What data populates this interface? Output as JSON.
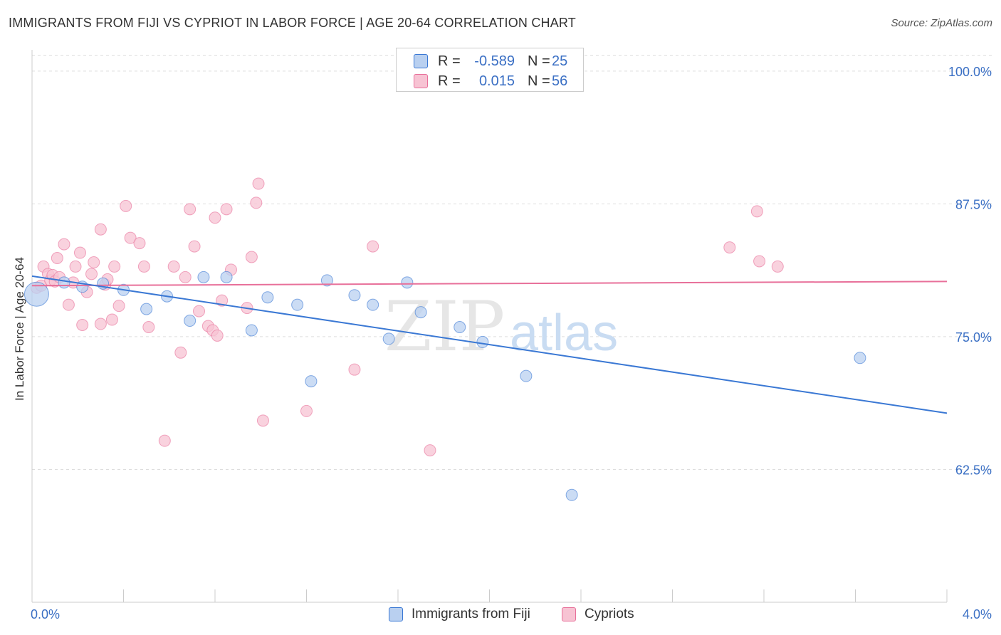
{
  "title": "IMMIGRANTS FROM FIJI VS CYPRIOT IN LABOR FORCE | AGE 20-64 CORRELATION CHART",
  "source": "Source: ZipAtlas.com",
  "colors": {
    "blue": "#3a78d4",
    "blue_fill": "#b9d0f0",
    "pink": "#e8709a",
    "pink_fill": "#f7c3d3",
    "axis_text": "#3a6fc4"
  },
  "watermark": {
    "zip": "ZIP",
    "atlas": "atlas"
  },
  "legend": {
    "rows": [
      {
        "r_label": "R =",
        "r_value": "-0.589",
        "n_label": "N =",
        "n_value": "25"
      },
      {
        "r_label": "R =",
        "r_value": "0.015",
        "n_label": "N =",
        "n_value": "56"
      }
    ]
  },
  "bottom_legend": {
    "fiji": "Immigrants from Fiji",
    "cypriots": "Cypriots"
  },
  "chart_data": {
    "type": "scatter",
    "title": "IMMIGRANTS FROM FIJI VS CYPRIOT IN LABOR FORCE | AGE 20-64 CORRELATION CHART",
    "xlabel": "",
    "ylabel": "In Labor Force | Age 20-64",
    "xlim": [
      0,
      4
    ],
    "ylim": [
      50,
      102
    ],
    "x_tick_labels": [
      "0.0%",
      "4.0%"
    ],
    "y_ticks": [
      62.5,
      75,
      87.5,
      100
    ],
    "y_tick_labels": [
      "62.5%",
      "75.0%",
      "87.5%",
      "100.0%"
    ],
    "grid": true,
    "series": [
      {
        "name": "Immigrants from Fiji",
        "r": -0.589,
        "n": 25,
        "trend": {
          "x": [
            0,
            4
          ],
          "y": [
            80.7,
            67.8
          ]
        },
        "points": [
          {
            "x": 0.02,
            "y": 79.0,
            "big": true
          },
          {
            "x": 0.14,
            "y": 80.1
          },
          {
            "x": 0.22,
            "y": 79.7
          },
          {
            "x": 0.31,
            "y": 80.0
          },
          {
            "x": 0.4,
            "y": 79.4
          },
          {
            "x": 0.5,
            "y": 77.6
          },
          {
            "x": 0.59,
            "y": 78.8
          },
          {
            "x": 0.69,
            "y": 76.5
          },
          {
            "x": 0.75,
            "y": 80.6
          },
          {
            "x": 0.85,
            "y": 80.6
          },
          {
            "x": 0.96,
            "y": 75.6
          },
          {
            "x": 1.03,
            "y": 78.7
          },
          {
            "x": 1.16,
            "y": 78.0
          },
          {
            "x": 1.22,
            "y": 70.8
          },
          {
            "x": 1.29,
            "y": 80.3
          },
          {
            "x": 1.41,
            "y": 78.9
          },
          {
            "x": 1.49,
            "y": 78.0
          },
          {
            "x": 1.56,
            "y": 74.8
          },
          {
            "x": 1.64,
            "y": 80.1
          },
          {
            "x": 1.7,
            "y": 77.3
          },
          {
            "x": 1.87,
            "y": 75.9
          },
          {
            "x": 1.97,
            "y": 74.5
          },
          {
            "x": 2.16,
            "y": 71.3
          },
          {
            "x": 2.36,
            "y": 60.1
          },
          {
            "x": 3.62,
            "y": 73.0
          }
        ]
      },
      {
        "name": "Cypriots",
        "r": 0.015,
        "n": 56,
        "trend": {
          "x": [
            0,
            4
          ],
          "y": [
            79.8,
            80.2
          ]
        },
        "points": [
          {
            "x": 0.02,
            "y": 79.6
          },
          {
            "x": 0.04,
            "y": 79.8
          },
          {
            "x": 0.05,
            "y": 81.6
          },
          {
            "x": 0.07,
            "y": 80.9
          },
          {
            "x": 0.08,
            "y": 80.3
          },
          {
            "x": 0.09,
            "y": 80.8
          },
          {
            "x": 0.1,
            "y": 80.2
          },
          {
            "x": 0.11,
            "y": 82.4
          },
          {
            "x": 0.12,
            "y": 80.6
          },
          {
            "x": 0.14,
            "y": 83.7
          },
          {
            "x": 0.16,
            "y": 78.0
          },
          {
            "x": 0.18,
            "y": 80.1
          },
          {
            "x": 0.19,
            "y": 81.6
          },
          {
            "x": 0.21,
            "y": 82.9
          },
          {
            "x": 0.22,
            "y": 76.1
          },
          {
            "x": 0.24,
            "y": 79.2
          },
          {
            "x": 0.26,
            "y": 80.9
          },
          {
            "x": 0.27,
            "y": 82.0
          },
          {
            "x": 0.3,
            "y": 76.2
          },
          {
            "x": 0.3,
            "y": 85.1
          },
          {
            "x": 0.32,
            "y": 79.9
          },
          {
            "x": 0.33,
            "y": 80.4
          },
          {
            "x": 0.35,
            "y": 76.6
          },
          {
            "x": 0.36,
            "y": 81.6
          },
          {
            "x": 0.38,
            "y": 77.9
          },
          {
            "x": 0.41,
            "y": 87.3
          },
          {
            "x": 0.43,
            "y": 84.3
          },
          {
            "x": 0.47,
            "y": 83.8
          },
          {
            "x": 0.49,
            "y": 81.6
          },
          {
            "x": 0.51,
            "y": 75.9
          },
          {
            "x": 0.62,
            "y": 81.6
          },
          {
            "x": 0.65,
            "y": 73.5
          },
          {
            "x": 0.67,
            "y": 80.6
          },
          {
            "x": 0.69,
            "y": 87.0
          },
          {
            "x": 0.71,
            "y": 83.5
          },
          {
            "x": 0.73,
            "y": 77.4
          },
          {
            "x": 0.77,
            "y": 76.0
          },
          {
            "x": 0.79,
            "y": 75.6
          },
          {
            "x": 0.8,
            "y": 86.2
          },
          {
            "x": 0.81,
            "y": 75.1
          },
          {
            "x": 0.83,
            "y": 78.4
          },
          {
            "x": 0.85,
            "y": 87.0
          },
          {
            "x": 0.87,
            "y": 81.3
          },
          {
            "x": 0.94,
            "y": 77.7
          },
          {
            "x": 0.96,
            "y": 82.5
          },
          {
            "x": 0.98,
            "y": 87.6
          },
          {
            "x": 0.99,
            "y": 89.4
          },
          {
            "x": 0.58,
            "y": 65.2
          },
          {
            "x": 1.01,
            "y": 67.1
          },
          {
            "x": 1.2,
            "y": 68.0
          },
          {
            "x": 1.41,
            "y": 71.9
          },
          {
            "x": 1.49,
            "y": 83.5
          },
          {
            "x": 1.74,
            "y": 64.3
          },
          {
            "x": 3.05,
            "y": 83.4
          },
          {
            "x": 3.17,
            "y": 86.8
          },
          {
            "x": 3.18,
            "y": 82.1
          },
          {
            "x": 3.26,
            "y": 81.6
          }
        ]
      }
    ]
  }
}
